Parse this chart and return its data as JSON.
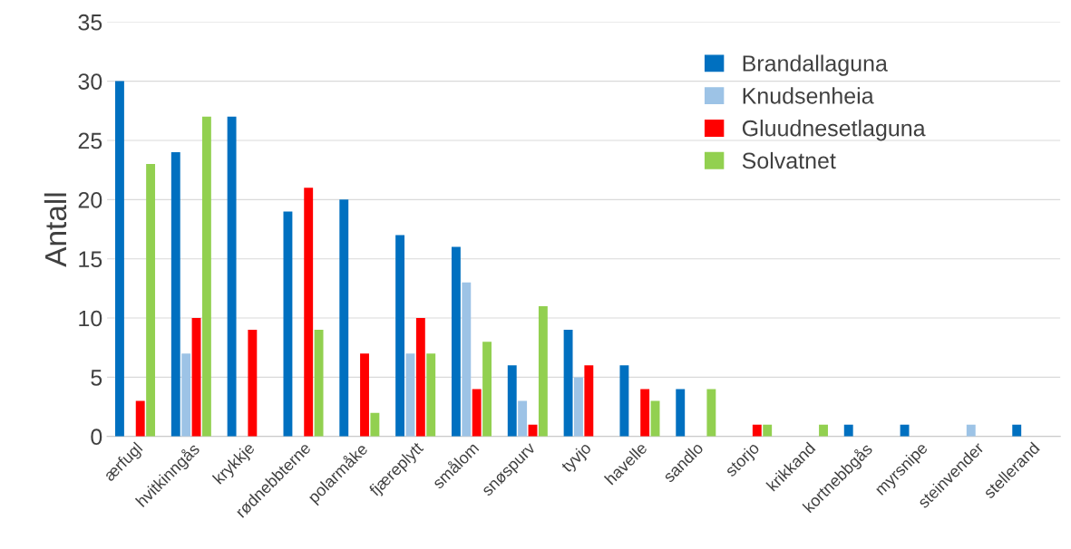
{
  "chart_data": {
    "type": "bar",
    "ylabel": "Antall",
    "categories": [
      "ærfugl",
      "hvitkinngås",
      "krykkje",
      "rødnebbterne",
      "polarmåke",
      "fjæreplytt",
      "smålom",
      "snøspurv",
      "tyvjo",
      "havelle",
      "sandlo",
      "storjo",
      "krikkand",
      "kortnebbgås",
      "myrsnipe",
      "steinvender",
      "stellerand"
    ],
    "series": [
      {
        "name": "Brandallaguna",
        "color": "#0070c0",
        "values": [
          30,
          24,
          27,
          19,
          20,
          17,
          16,
          6,
          9,
          6,
          4,
          0,
          0,
          1,
          1,
          0,
          1
        ]
      },
      {
        "name": "Knudsenheia",
        "color": "#9dc3e6",
        "values": [
          0,
          7,
          0,
          0,
          0,
          7,
          13,
          3,
          5,
          0,
          0,
          0,
          0,
          0,
          0,
          1,
          0
        ]
      },
      {
        "name": "Gluudnesetlaguna",
        "color": "#ff0000",
        "values": [
          3,
          10,
          9,
          21,
          7,
          10,
          4,
          1,
          6,
          4,
          0,
          1,
          0,
          0,
          0,
          0,
          0
        ]
      },
      {
        "name": "Solvatnet",
        "color": "#92d050",
        "values": [
          23,
          27,
          0,
          9,
          2,
          7,
          8,
          11,
          0,
          3,
          4,
          1,
          1,
          0,
          0,
          0,
          0
        ]
      }
    ],
    "ylim": [
      0,
      35
    ],
    "yticks": [
      0,
      5,
      10,
      15,
      20,
      25,
      30,
      35
    ],
    "grid": "y",
    "legend": "top right"
  }
}
